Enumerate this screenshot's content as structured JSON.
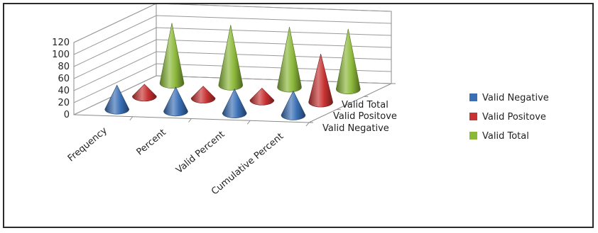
{
  "chart_data": {
    "type": "3d-cone-column",
    "categories": [
      "Frequency",
      "Percent",
      "Valid Percent",
      "Cumulative Percent"
    ],
    "series": [
      {
        "name": "Valid Negative",
        "values": [
          40,
          40,
          40,
          40
        ],
        "color": "#3a6fb5"
      },
      {
        "name": "Valid Positove",
        "values": [
          20,
          20,
          20,
          80
        ],
        "color": "#c83232"
      },
      {
        "name": "Valid Total",
        "values": [
          100,
          100,
          100,
          100
        ],
        "color": "#8cb83a"
      }
    ],
    "ylim": [
      0,
      120
    ],
    "yticks": [
      "0",
      "20",
      "40",
      "60",
      "80",
      "100",
      "120"
    ],
    "depth_labels": [
      "Valid Total",
      "Valid Positove",
      "Valid Negative"
    ],
    "legend_position": "right",
    "grid": true
  }
}
